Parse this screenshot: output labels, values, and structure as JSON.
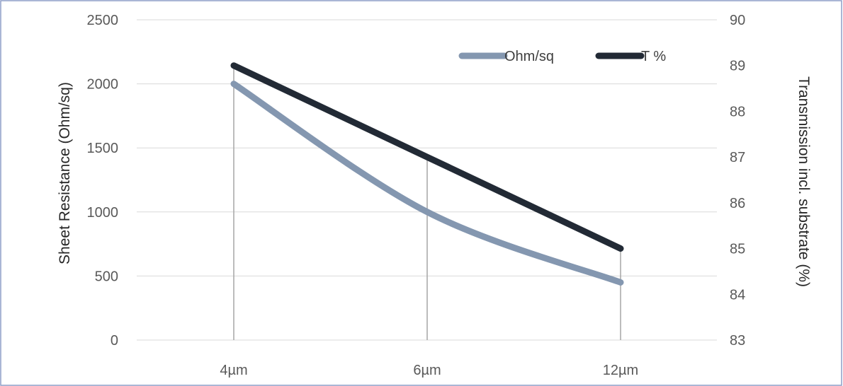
{
  "chart_data": {
    "type": "line",
    "categories": [
      "4µm",
      "6µm",
      "12µm"
    ],
    "series": [
      {
        "name": "Ohm/sq",
        "axis": "left",
        "color": "#8497b0",
        "values": [
          2000,
          1000,
          450
        ]
      },
      {
        "name": "T %",
        "axis": "right",
        "color": "#222a35",
        "values": [
          89,
          87,
          85
        ]
      }
    ],
    "ylabel": "Sheet Resistance (Ohm/sq)",
    "y2label": "Transmission incl. substrate  (%)",
    "ylim": [
      0,
      2500
    ],
    "y2lim": [
      83,
      90
    ],
    "yticks": [
      "0",
      "500",
      "1000",
      "1500",
      "2000",
      "2500"
    ],
    "y2ticks": [
      "83",
      "84",
      "85",
      "86",
      "87",
      "88",
      "89",
      "90"
    ],
    "grid": true,
    "drop_lines": true,
    "legend": "top-right"
  }
}
